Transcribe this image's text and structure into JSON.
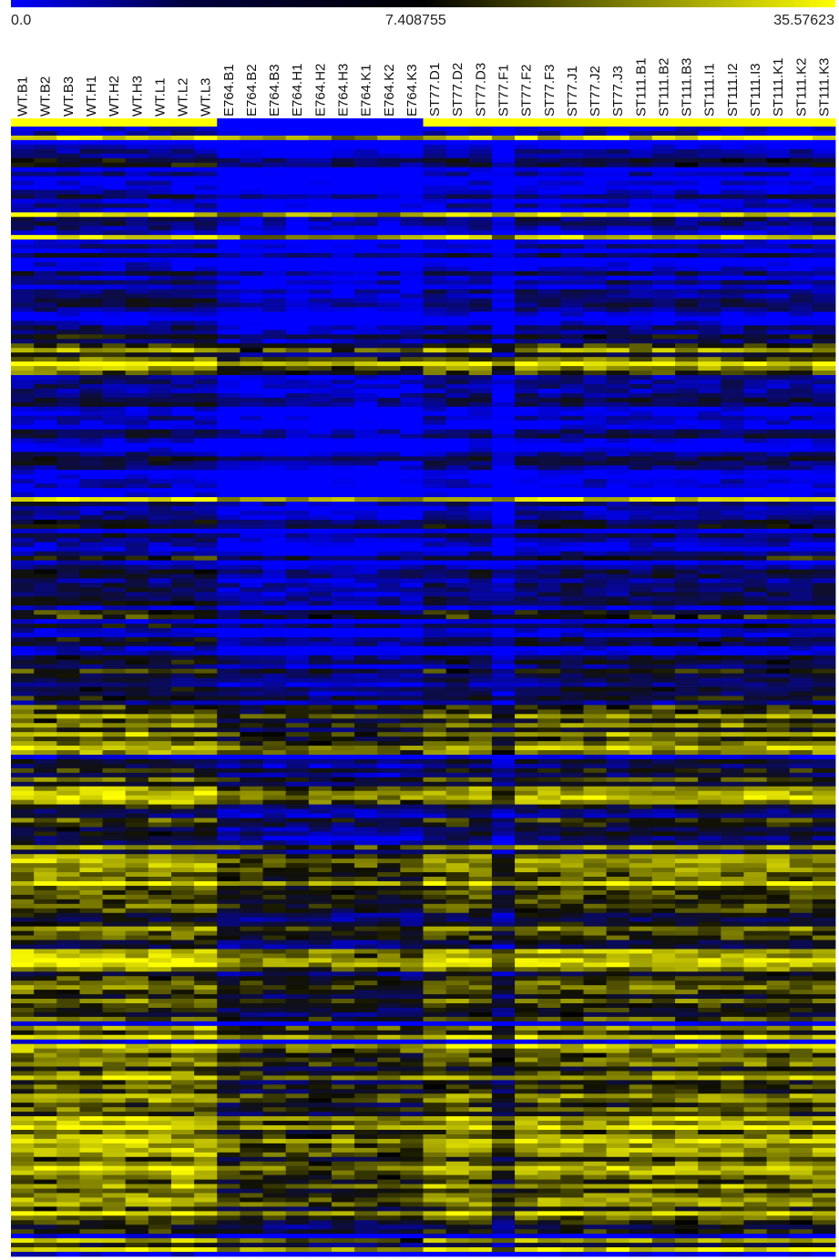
{
  "chart_data": {
    "type": "heatmap",
    "title": "",
    "xlabel": "",
    "ylabel": "",
    "color_scale": {
      "min": "0.0",
      "mid": "7.408755",
      "max": "35.57623",
      "colors": [
        "#0000ff",
        "#000000",
        "#ffff00"
      ]
    },
    "columns": [
      "WT.B1",
      "WT.B2",
      "WT.B3",
      "WT.H1",
      "WT.H2",
      "WT.H3",
      "WT.L1",
      "WT.L2",
      "WT.L3",
      "E764.B1",
      "E764.B2",
      "E764.B3",
      "E764.H1",
      "E764.H2",
      "E764.H3",
      "E764.K1",
      "E764.K2",
      "E764.K3",
      "ST77.D1",
      "ST77.D2",
      "ST77.D3",
      "ST77.F1",
      "ST77.F2",
      "ST77.F3",
      "ST77.J1",
      "ST77.J2",
      "ST77.J3",
      "ST111.B1",
      "ST111.B2",
      "ST111.B3",
      "ST111.I1",
      "ST111.I2",
      "ST111.I3",
      "ST111.K1",
      "ST111.K2",
      "ST111.K3"
    ],
    "group_bar": [
      {
        "group": "WT",
        "from": 0,
        "to": 8,
        "color": "#ffff00"
      },
      {
        "group": "E764",
        "from": 9,
        "to": 17,
        "color": "#0000ff"
      },
      {
        "group": "ST77",
        "from": 18,
        "to": 26,
        "color": "#ffff00"
      },
      {
        "group": "ST111",
        "from": 27,
        "to": 35,
        "color": "#ffff00"
      }
    ],
    "row_count": 250,
    "row_profile_levels": [
      0.1,
      0.2,
      0.1,
      0.15,
      0.1,
      0.2,
      0.15,
      0.1,
      0.85,
      0.2,
      0.3,
      0.2,
      0.15,
      0.2,
      0.25,
      0.3,
      0.4,
      0.3,
      0.35,
      0.5,
      0.45,
      0.8,
      0.55,
      0.6,
      0.5,
      0.6,
      0.55,
      0.65,
      0.6,
      0.65,
      0.6,
      0.6,
      0.7,
      0.65,
      0.75,
      0.8,
      0.7,
      0.75,
      0.65,
      0.8
    ],
    "group_shifts": {
      "WT": 0.0,
      "E764": -0.2,
      "ST77": -0.05,
      "ST111": -0.05
    },
    "outlier_column": "ST77.F1"
  }
}
